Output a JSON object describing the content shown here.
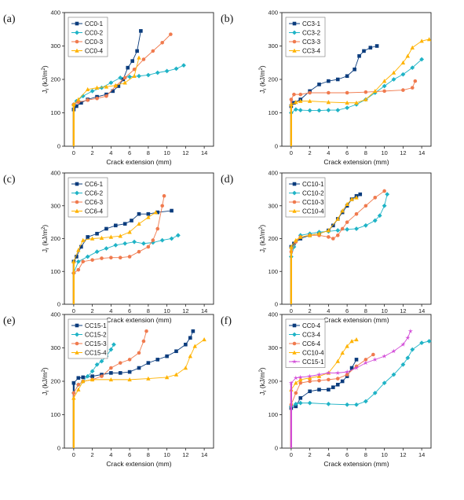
{
  "figure": {
    "panel_labels": [
      "(a)",
      "(b)",
      "(c)",
      "(d)",
      "(e)",
      "(f)"
    ],
    "xlabel": "Crack extension (mm)",
    "ylabel": "J",
    "ylabel_sub": "r",
    "ylabel_unit": " (kJ/m",
    "ylabel_sup": "2",
    "ylabel_close": ")"
  },
  "chart_data": [
    {
      "panel": "(a)",
      "type": "line",
      "xlim": [
        -1,
        15
      ],
      "ylim": [
        0,
        400
      ],
      "xticks": [
        0,
        2,
        4,
        6,
        8,
        10,
        12,
        14
      ],
      "yticks": [
        0,
        100,
        200,
        300,
        400
      ],
      "legend_position": "top-left",
      "series": [
        {
          "name": "CC0-1",
          "color": "#0b3c7d",
          "marker": "square",
          "x": [
            0,
            0.3,
            0.8,
            1.5,
            2.5,
            3.5,
            4.2,
            4.8,
            5.3,
            5.8,
            6.3,
            6.8,
            7.2
          ],
          "y": [
            110,
            120,
            130,
            140,
            148,
            155,
            165,
            180,
            200,
            235,
            255,
            285,
            345
          ]
        },
        {
          "name": "CC0-2",
          "color": "#1fb3c6",
          "marker": "diamond",
          "x": [
            0,
            0.3,
            1,
            2,
            3,
            4,
            5,
            6,
            7,
            8,
            9,
            10,
            11,
            11.8
          ],
          "y": [
            125,
            135,
            150,
            165,
            175,
            190,
            205,
            208,
            210,
            213,
            220,
            225,
            232,
            242
          ]
        },
        {
          "name": "CC0-3",
          "color": "#f07a4e",
          "marker": "circle",
          "x": [
            0,
            0.5,
            1.5,
            2.5,
            3.5,
            4.5,
            5.5,
            6.5,
            7.5,
            8.5,
            9.5,
            10.4
          ],
          "y": [
            125,
            132,
            138,
            143,
            150,
            180,
            205,
            230,
            260,
            285,
            310,
            335
          ]
        },
        {
          "name": "CC0-4",
          "color": "#ffb300",
          "marker": "triangle",
          "x": [
            0,
            0.5,
            1.5,
            2.5,
            3.5,
            4.5,
            5.5,
            6.5,
            7
          ],
          "y": [
            125,
            140,
            170,
            175,
            178,
            182,
            190,
            210,
            265
          ]
        }
      ]
    },
    {
      "panel": "(b)",
      "type": "line",
      "xlim": [
        -1,
        15
      ],
      "ylim": [
        0,
        400
      ],
      "xticks": [
        0,
        2,
        4,
        6,
        8,
        10,
        12,
        14
      ],
      "yticks": [
        0,
        100,
        200,
        300,
        400
      ],
      "legend_position": "top-left",
      "series": [
        {
          "name": "CC3-1",
          "color": "#0b3c7d",
          "marker": "square",
          "x": [
            0,
            0.3,
            1,
            2,
            3,
            4,
            5,
            6,
            6.8,
            7.3,
            7.8,
            8.5,
            9.2
          ],
          "y": [
            120,
            130,
            140,
            165,
            185,
            195,
            200,
            210,
            230,
            270,
            285,
            295,
            300
          ]
        },
        {
          "name": "CC3-2",
          "color": "#1fb3c6",
          "marker": "diamond",
          "x": [
            0,
            0.5,
            1,
            2,
            3,
            4,
            5,
            6,
            7,
            8,
            9,
            10,
            11,
            12,
            13,
            14
          ],
          "y": [
            100,
            110,
            108,
            107,
            107,
            108,
            108,
            115,
            125,
            140,
            160,
            180,
            200,
            215,
            235,
            260
          ]
        },
        {
          "name": "CC3-3",
          "color": "#f07a4e",
          "marker": "circle",
          "x": [
            0,
            0.3,
            1,
            2,
            4,
            6,
            8,
            10,
            12,
            13,
            13.3
          ],
          "y": [
            140,
            155,
            155,
            160,
            160,
            160,
            162,
            165,
            168,
            175,
            195
          ]
        },
        {
          "name": "CC3-4",
          "color": "#ffb300",
          "marker": "triangle",
          "x": [
            0,
            0.5,
            1,
            2,
            4,
            6,
            7,
            8,
            9,
            10,
            11,
            12,
            12.5,
            13,
            14,
            14.8
          ],
          "y": [
            125,
            132,
            135,
            135,
            132,
            130,
            130,
            140,
            165,
            195,
            220,
            250,
            270,
            295,
            315,
            320
          ]
        }
      ]
    },
    {
      "panel": "(c)",
      "type": "line",
      "xlim": [
        -1,
        15
      ],
      "ylim": [
        0,
        400
      ],
      "xticks": [
        0,
        2,
        4,
        6,
        8,
        10,
        12,
        14
      ],
      "yticks": [
        0,
        100,
        200,
        300,
        400
      ],
      "legend_position": "top-left",
      "series": [
        {
          "name": "CC6-1",
          "color": "#0b3c7d",
          "marker": "square",
          "x": [
            0,
            0.3,
            0.8,
            1.5,
            2.5,
            3.5,
            4.5,
            5.5,
            6.2,
            7,
            8,
            9,
            10.5
          ],
          "y": [
            130,
            145,
            175,
            205,
            215,
            230,
            240,
            245,
            255,
            275,
            275,
            280,
            285
          ]
        },
        {
          "name": "CC6-2",
          "color": "#1fb3c6",
          "marker": "diamond",
          "x": [
            0,
            0.5,
            1.5,
            2.5,
            3.5,
            4.5,
            5.5,
            6.5,
            7.5,
            8.5,
            9.5,
            10.5,
            11.2
          ],
          "y": [
            95,
            130,
            145,
            160,
            170,
            180,
            185,
            190,
            185,
            188,
            195,
            200,
            210
          ]
        },
        {
          "name": "CC6-3",
          "color": "#f07a4e",
          "marker": "circle",
          "x": [
            0,
            0.5,
            1,
            2,
            3,
            4,
            5,
            6,
            7,
            8,
            8.5,
            9,
            9.5,
            9.7
          ],
          "y": [
            95,
            105,
            130,
            135,
            140,
            142,
            142,
            145,
            160,
            175,
            195,
            230,
            300,
            330
          ]
        },
        {
          "name": "CC6-4",
          "color": "#ffb300",
          "marker": "triangle",
          "x": [
            0,
            0.5,
            1,
            2,
            3,
            4,
            5,
            6,
            7,
            8,
            8.8
          ],
          "y": [
            130,
            165,
            195,
            200,
            202,
            205,
            208,
            220,
            245,
            265,
            280
          ]
        }
      ]
    },
    {
      "panel": "(d)",
      "type": "line",
      "xlim": [
        -1,
        15
      ],
      "ylim": [
        0,
        400
      ],
      "xticks": [
        0,
        2,
        4,
        6,
        8,
        10,
        12,
        14
      ],
      "yticks": [
        0,
        100,
        200,
        300,
        400
      ],
      "legend_position": "top-left",
      "series": [
        {
          "name": "CC10-1",
          "color": "#0b3c7d",
          "marker": "square",
          "x": [
            0,
            0.3,
            1,
            2,
            3,
            4,
            4.5,
            5,
            5.5,
            6,
            6.5,
            7,
            7.4
          ],
          "y": [
            175,
            185,
            200,
            210,
            215,
            225,
            240,
            260,
            280,
            300,
            320,
            330,
            335
          ]
        },
        {
          "name": "CC10-2",
          "color": "#1fb3c6",
          "marker": "diamond",
          "x": [
            0,
            0.3,
            1,
            2,
            3,
            4,
            5,
            6,
            7,
            8,
            9,
            9.5,
            10,
            10.3
          ],
          "y": [
            145,
            175,
            210,
            215,
            220,
            222,
            225,
            228,
            230,
            240,
            255,
            270,
            300,
            335
          ]
        },
        {
          "name": "CC10-3",
          "color": "#f07a4e",
          "marker": "circle",
          "x": [
            0,
            0.5,
            1,
            2,
            3,
            4,
            4.5,
            5,
            5.5,
            6,
            7,
            8,
            9,
            10
          ],
          "y": [
            160,
            190,
            205,
            210,
            210,
            205,
            200,
            210,
            230,
            250,
            275,
            300,
            325,
            345
          ]
        },
        {
          "name": "CC10-4",
          "color": "#ffb300",
          "marker": "triangle",
          "x": [
            0,
            0.5,
            1,
            2,
            3,
            4,
            5,
            5.5,
            6,
            6.5,
            7
          ],
          "y": [
            175,
            195,
            205,
            210,
            215,
            225,
            260,
            285,
            305,
            320,
            325
          ]
        }
      ]
    },
    {
      "panel": "(e)",
      "type": "line",
      "xlim": [
        -1,
        15
      ],
      "ylim": [
        0,
        400
      ],
      "xticks": [
        0,
        2,
        4,
        6,
        8,
        10,
        12,
        14
      ],
      "yticks": [
        0,
        100,
        200,
        300,
        400
      ],
      "legend_position": "top-left",
      "series": [
        {
          "name": "CC15-1",
          "color": "#0b3c7d",
          "marker": "square",
          "x": [
            0,
            0.5,
            1,
            2,
            3,
            4,
            5,
            6,
            7,
            8,
            9,
            10,
            11,
            12,
            12.5,
            12.8
          ],
          "y": [
            195,
            210,
            212,
            215,
            220,
            225,
            225,
            228,
            240,
            255,
            265,
            275,
            290,
            310,
            330,
            350
          ]
        },
        {
          "name": "CC15-2",
          "color": "#1fb3c6",
          "marker": "diamond",
          "x": [
            0,
            0.5,
            1,
            1.5,
            2,
            2.5,
            3,
            3.5,
            4,
            4.3
          ],
          "y": [
            165,
            190,
            200,
            215,
            230,
            250,
            260,
            275,
            295,
            310
          ]
        },
        {
          "name": "CC15-3",
          "color": "#f07a4e",
          "marker": "circle",
          "x": [
            0,
            0.5,
            1,
            2,
            3,
            4,
            5,
            6,
            7,
            7.5,
            7.8
          ],
          "y": [
            165,
            190,
            200,
            205,
            215,
            240,
            255,
            265,
            285,
            320,
            350
          ]
        },
        {
          "name": "CC15-4",
          "color": "#ffb300",
          "marker": "triangle",
          "x": [
            0,
            0.5,
            1,
            2,
            4,
            6,
            8,
            10,
            11,
            12,
            12.5,
            13,
            14
          ],
          "y": [
            150,
            175,
            200,
            205,
            205,
            205,
            208,
            212,
            220,
            240,
            275,
            305,
            325
          ]
        }
      ]
    },
    {
      "panel": "(f)",
      "type": "line",
      "xlim": [
        -1,
        15
      ],
      "ylim": [
        0,
        400
      ],
      "xticks": [
        0,
        2,
        4,
        6,
        8,
        10,
        12,
        14
      ],
      "yticks": [
        0,
        100,
        200,
        300,
        400
      ],
      "legend_position": "top-left",
      "series": [
        {
          "name": "CC0-4",
          "color": "#0b3c7d",
          "marker": "square",
          "x": [
            0,
            0.5,
            1,
            2,
            3,
            4,
            4.5,
            5,
            5.5,
            6,
            6.5,
            7
          ],
          "y": [
            120,
            125,
            150,
            170,
            175,
            175,
            182,
            190,
            200,
            215,
            240,
            265
          ]
        },
        {
          "name": "CC3-4",
          "color": "#1fb3c6",
          "marker": "diamond",
          "x": [
            0,
            0.5,
            1,
            2,
            4,
            6,
            7,
            8,
            9,
            10,
            11,
            12,
            12.5,
            13,
            14,
            14.8
          ],
          "y": [
            125,
            132,
            135,
            135,
            132,
            130,
            130,
            140,
            165,
            195,
            220,
            250,
            270,
            295,
            315,
            320
          ]
        },
        {
          "name": "CC6-4",
          "color": "#f07a4e",
          "marker": "circle",
          "x": [
            0,
            0.5,
            1,
            2,
            3,
            4,
            5,
            6,
            7,
            8,
            8.8
          ],
          "y": [
            130,
            165,
            195,
            200,
            202,
            205,
            208,
            220,
            245,
            265,
            280
          ]
        },
        {
          "name": "CC10-4",
          "color": "#ffb300",
          "marker": "triangle",
          "x": [
            0,
            0.5,
            1,
            2,
            3,
            4,
            5,
            5.5,
            6,
            6.5,
            7
          ],
          "y": [
            175,
            195,
            205,
            210,
            215,
            225,
            260,
            285,
            305,
            320,
            325
          ]
        },
        {
          "name": "CC15-1",
          "color": "#d24bd8",
          "marker": "star",
          "x": [
            0,
            0.5,
            1,
            2,
            3,
            4,
            5,
            6,
            7,
            8,
            9,
            10,
            11,
            12,
            12.5,
            12.8
          ],
          "y": [
            195,
            210,
            212,
            215,
            220,
            225,
            225,
            228,
            240,
            255,
            265,
            275,
            290,
            310,
            330,
            350
          ]
        }
      ]
    }
  ]
}
